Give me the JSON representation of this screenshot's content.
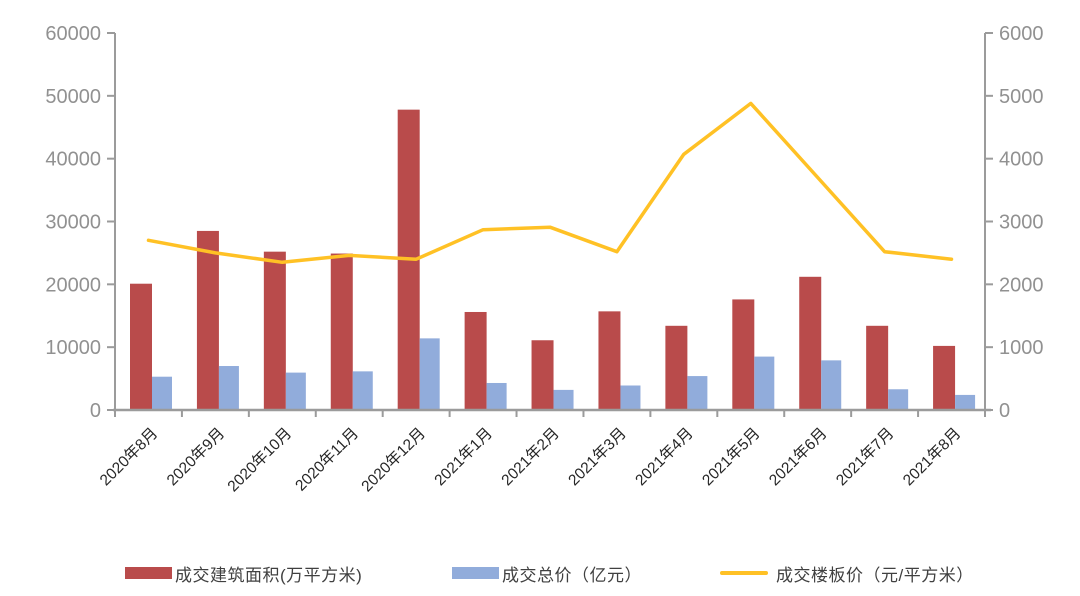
{
  "chart_data": {
    "type": "combo",
    "title": "",
    "categories": [
      "2020年8月",
      "2020年9月",
      "2020年10月",
      "2020年11月",
      "2020年12月",
      "2021年1月",
      "2021年2月",
      "2021年3月",
      "2021年4月",
      "2021年5月",
      "2021年6月",
      "2021年7月",
      "2021年8月"
    ],
    "series": [
      {
        "name": "成交建筑面积(万平方米)",
        "type": "bar",
        "axis": "left",
        "color": "#B94B4B",
        "values": [
          20100,
          28500,
          25200,
          24900,
          47800,
          15600,
          11100,
          15700,
          13400,
          17600,
          21200,
          13400,
          10200
        ]
      },
      {
        "name": "成交总价（亿元）",
        "type": "bar",
        "axis": "left",
        "color": "#91ACDB",
        "values": [
          5300,
          7000,
          5950,
          6150,
          11400,
          4300,
          3200,
          3900,
          5400,
          8500,
          7900,
          3300,
          2400
        ]
      },
      {
        "name": "成交楼板价（元/平方米）",
        "type": "line",
        "axis": "right",
        "color": "#FFC125",
        "values": [
          2700,
          2500,
          2350,
          2460,
          2400,
          2870,
          2910,
          2520,
          4070,
          4880,
          3700,
          2520,
          2400
        ]
      }
    ],
    "left_axis": {
      "min": 0,
      "max": 60000,
      "step": 10000,
      "tick_labels": [
        "0",
        "10000",
        "20000",
        "30000",
        "40000",
        "50000",
        "60000"
      ]
    },
    "right_axis": {
      "min": 0,
      "max": 6000,
      "step": 1000,
      "tick_labels": [
        "0",
        "1000",
        "2000",
        "3000",
        "4000",
        "5000",
        "6000"
      ]
    },
    "grid": false,
    "legend_position": "bottom"
  },
  "colors": {
    "background": "#FFFFFF",
    "axis_line": "#9B9B9B",
    "axis_tick_label": "#919191",
    "category_label": "#262626",
    "legend_text": "#404040"
  }
}
